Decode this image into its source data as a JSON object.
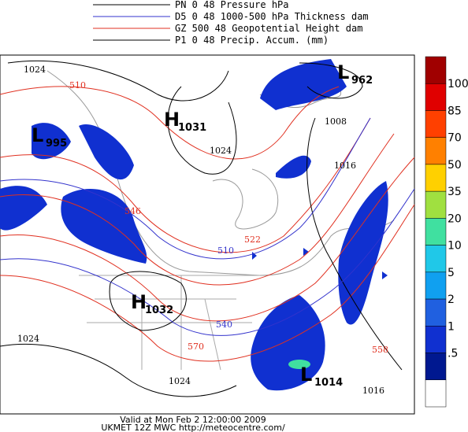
{
  "legend": [
    {
      "label": "PN 0 48 Pressure hPa",
      "color": "#000000"
    },
    {
      "label": "D5 0 48 1000-500 hPa Thickness dam",
      "color": "#3333cc"
    },
    {
      "label": "GZ 500 48 Geopotential Height dam",
      "color": "#e03020"
    },
    {
      "label": "P1 0 48 Precip. Accum. (mm)",
      "color": "#000000"
    }
  ],
  "centers": [
    {
      "letter": "H",
      "value": "1031"
    },
    {
      "letter": "L",
      "value": "995"
    },
    {
      "letter": "L",
      "value": "962"
    },
    {
      "letter": "H",
      "value": "1032"
    },
    {
      "letter": "L",
      "value": "1014"
    }
  ],
  "contour_labels": [
    "1024",
    "510",
    "1024",
    "1008",
    "1016",
    "510",
    "540",
    "1024",
    "1024",
    "570",
    "1016",
    "522",
    "546",
    "558"
  ],
  "scale": {
    "labels": [
      "100",
      "85",
      "70",
      "50",
      "35",
      "20",
      "10",
      "5",
      "2",
      "1",
      ".5"
    ],
    "colors": [
      "#a00000",
      "#e00000",
      "#ff4000",
      "#ff8000",
      "#ffd000",
      "#a0e040",
      "#40e0a0",
      "#20c8e8",
      "#10a0f0",
      "#2060e0",
      "#1030d0",
      "#001890",
      "#ffffff"
    ]
  },
  "footer": {
    "valid": "Valid at Mon Feb  2 12:00:00 2009",
    "source": "UKMET 12Z MWC http://meteocentre.com/"
  }
}
